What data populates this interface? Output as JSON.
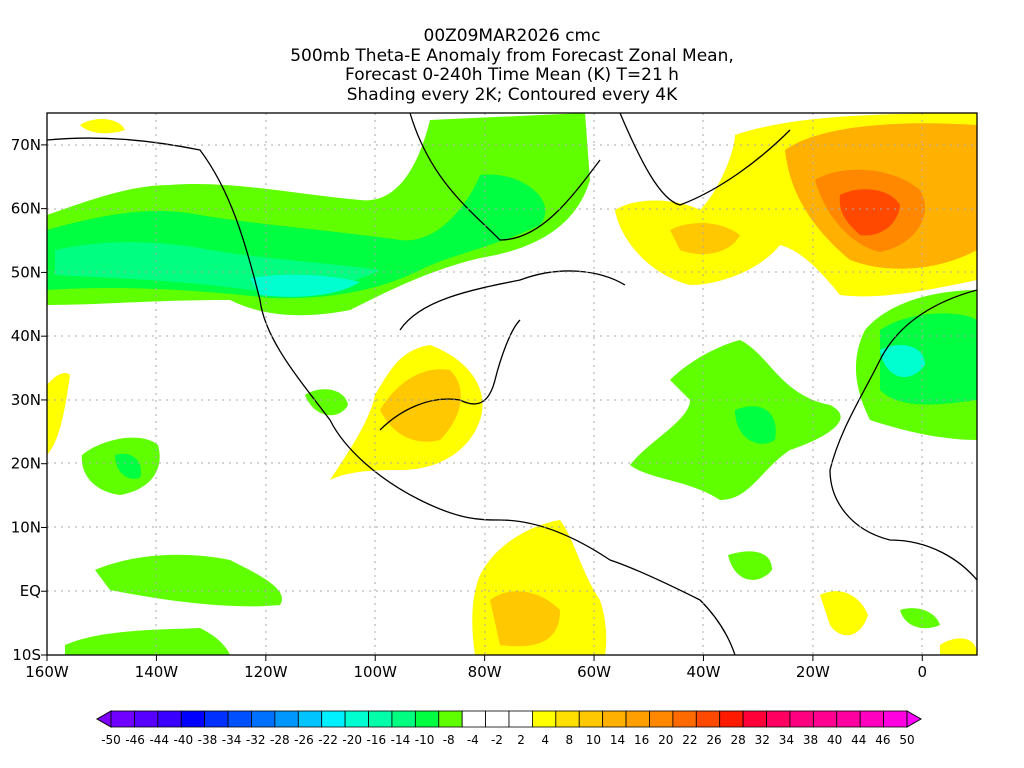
{
  "title": {
    "line1": "00Z09MAR2026 cmc",
    "line2": "500mb Theta-E Anomaly from Forecast Zonal Mean,",
    "line3": "Forecast 0-240h Time Mean (K) T=21 h",
    "line4": "Shading every 2K; Contoured every 4K"
  },
  "map": {
    "lon_range": [
      -160,
      10
    ],
    "lat_range": [
      -10,
      75
    ],
    "x_labels": [
      {
        "lon": -160,
        "text": "160W"
      },
      {
        "lon": -140,
        "text": "140W"
      },
      {
        "lon": -120,
        "text": "120W"
      },
      {
        "lon": -100,
        "text": "100W"
      },
      {
        "lon": -80,
        "text": "80W"
      },
      {
        "lon": -60,
        "text": "60W"
      },
      {
        "lon": -40,
        "text": "40W"
      },
      {
        "lon": -20,
        "text": "20W"
      },
      {
        "lon": 0,
        "text": "0"
      }
    ],
    "y_labels": [
      {
        "lat": 70,
        "text": "70N"
      },
      {
        "lat": 60,
        "text": "60N"
      },
      {
        "lat": 50,
        "text": "50N"
      },
      {
        "lat": 40,
        "text": "40N"
      },
      {
        "lat": 30,
        "text": "30N"
      },
      {
        "lat": 20,
        "text": "20N"
      },
      {
        "lat": 10,
        "text": "10N"
      },
      {
        "lat": 0,
        "text": "EQ"
      },
      {
        "lat": -10,
        "text": "10S"
      }
    ]
  },
  "colorbar": {
    "labels": [
      "-50",
      "-46",
      "-44",
      "-40",
      "-38",
      "-34",
      "-32",
      "-28",
      "-26",
      "-22",
      "-20",
      "-16",
      "-14",
      "-10",
      "-8",
      "-4",
      "-2",
      "2",
      "4",
      "8",
      "10",
      "14",
      "16",
      "20",
      "22",
      "26",
      "28",
      "32",
      "34",
      "38",
      "40",
      "44",
      "46",
      "50"
    ],
    "colors": [
      "#7f00ff",
      "#7000ff",
      "#5800ff",
      "#3a00ff",
      "#0000ff",
      "#0030ff",
      "#0050ff",
      "#0070ff",
      "#0098ff",
      "#00c4ff",
      "#00f0ff",
      "#00ffd0",
      "#00ffa8",
      "#00ff80",
      "#00ff40",
      "#60ff00",
      "#ffffff",
      "#ffffff",
      "#ffffff",
      "#ffff00",
      "#ffe000",
      "#ffc800",
      "#ffb000",
      "#ffa000",
      "#ff8800",
      "#ff6a00",
      "#ff4800",
      "#ff1a00",
      "#ff0038",
      "#ff0060",
      "#ff0080",
      "#ff0090",
      "#ff00a0",
      "#ff00c0",
      "#ff00e0",
      "#ff00ff"
    ]
  }
}
